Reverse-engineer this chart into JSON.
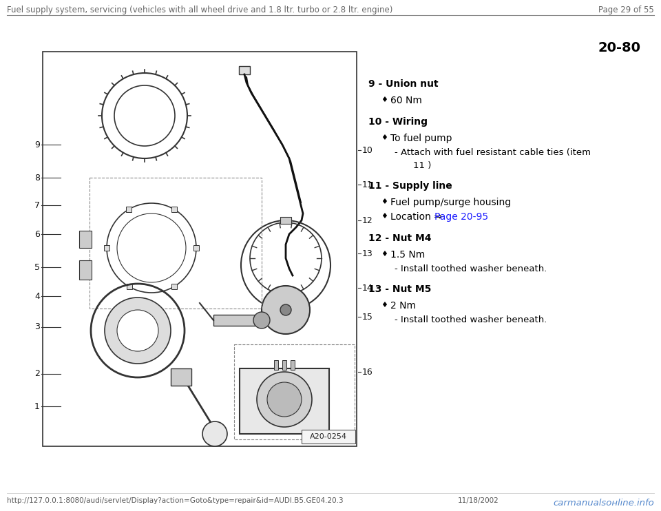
{
  "bg_color": "#ffffff",
  "header_text": "Fuel supply system, servicing (vehicles with all wheel drive and 1.8 ltr. turbo or 2.8 ltr. engine)",
  "page_text": "Page 29 of 55",
  "page_ref": "20-80",
  "footer_url": "http://127.0.0.1:8080/audi/servlet/Display?action=Goto&type=repair&id=AUDI.B5.GE04.20.3",
  "footer_date": "11/18/2002",
  "footer_watermark": "carmanualsонline.info",
  "items": [
    {
      "num": "9",
      "title": "Union nut",
      "subitems": [
        {
          "type": "bullet",
          "text": "60 Nm"
        }
      ]
    },
    {
      "num": "10",
      "title": "Wiring",
      "subitems": [
        {
          "type": "bullet",
          "text": "To fuel pump"
        },
        {
          "type": "dash",
          "text": "- Attach with fuel resistant cable ties (item\n    11 )"
        }
      ]
    },
    {
      "num": "11",
      "title": "Supply line",
      "subitems": [
        {
          "type": "bullet",
          "text": "Fuel pump/surge housing"
        },
        {
          "type": "bullet_link",
          "prefix": "Location ⇒ ",
          "link_text": "Page 20-95",
          "link_color": "#1a1aff"
        }
      ]
    },
    {
      "num": "12",
      "title": "Nut M4",
      "subitems": [
        {
          "type": "bullet",
          "text": "1.5 Nm"
        },
        {
          "type": "dash",
          "text": "- Install toothed washer beneath."
        }
      ]
    },
    {
      "num": "13",
      "title": "Nut M5",
      "subitems": [
        {
          "type": "bullet",
          "text": "2 Nm"
        },
        {
          "type": "dash",
          "text": "- Install toothed washer beneath."
        }
      ]
    }
  ],
  "image_label": "A20-0254",
  "header_fontsize": 8.5,
  "item_fontsize": 10,
  "bullet_fontsize": 10,
  "dash_fontsize": 9.5,
  "footer_fontsize": 7.5
}
